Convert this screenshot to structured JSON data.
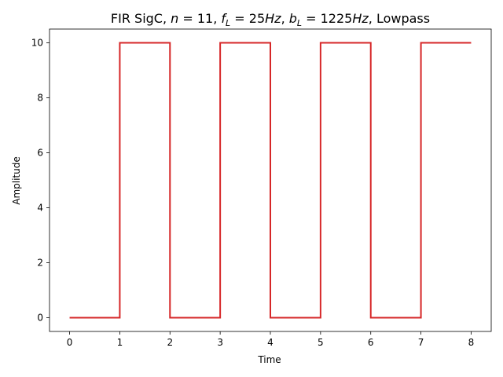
{
  "chart_data": {
    "type": "line",
    "title": {
      "prefix": "FIR SigC, ",
      "n_var": "n",
      "n_eq": " = ",
      "n_val": " 11, ",
      "f_var": "f",
      "f_sub": "L",
      "f_eq": " = ",
      "f_num": " 25",
      "f_unit": "Hz",
      "sep": ", ",
      "b_var": "b",
      "b_sub": "L",
      "b_eq": " = ",
      "b_num": "1225",
      "b_unit": "Hz",
      "suffix": ", Lowpass"
    },
    "xlabel": "Time",
    "ylabel": "Amplitude",
    "xlim": [
      -0.4,
      8.4
    ],
    "ylim": [
      -0.5,
      10.5
    ],
    "xticks": [
      0,
      1,
      2,
      3,
      4,
      5,
      6,
      7,
      8
    ],
    "yticks": [
      0,
      2,
      4,
      6,
      8,
      10
    ],
    "grid": false,
    "series": [
      {
        "color": "#d62728",
        "step": true,
        "x": [
          0,
          1,
          1,
          2,
          2,
          3,
          3,
          4,
          4,
          5,
          5,
          6,
          6,
          7,
          7,
          8
        ],
        "y": [
          0,
          0,
          10,
          10,
          0,
          0,
          10,
          10,
          0,
          0,
          10,
          10,
          0,
          0,
          10,
          10
        ]
      }
    ]
  }
}
